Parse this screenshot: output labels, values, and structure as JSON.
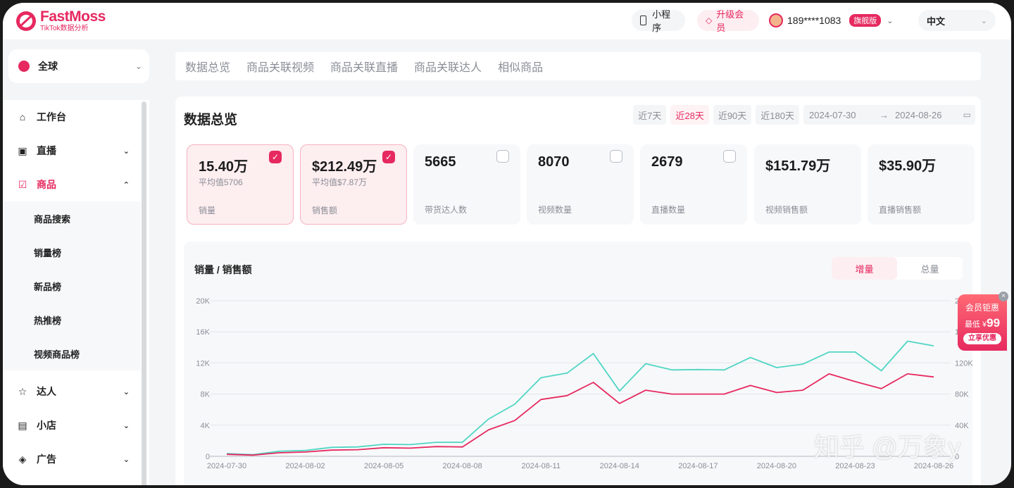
{
  "brand": {
    "name": "FastMoss",
    "tagline": "TikTok数据分析"
  },
  "topbar": {
    "mini_program": "小程序",
    "upgrade": "升级会员",
    "user_phone": "189****1083",
    "user_badge": "旗舰版",
    "language": "中文"
  },
  "region": {
    "label": "全球"
  },
  "sidebar": {
    "items": [
      {
        "label": "工作台",
        "icon": "home-icon"
      },
      {
        "label": "直播",
        "icon": "live-icon"
      },
      {
        "label": "商品",
        "icon": "product-icon"
      },
      {
        "label": "达人",
        "icon": "influencer-icon"
      },
      {
        "label": "小店",
        "icon": "shop-icon"
      },
      {
        "label": "广告",
        "icon": "ad-icon"
      }
    ],
    "sub_items": [
      "商品搜索",
      "销量榜",
      "新品榜",
      "热推榜",
      "视频商品榜"
    ]
  },
  "tabs": [
    "数据总览",
    "商品关联视频",
    "商品关联直播",
    "商品关联达人",
    "相似商品"
  ],
  "panel": {
    "title": "数据总览",
    "ranges": [
      "近7天",
      "近28天",
      "近90天",
      "近180天"
    ],
    "active_range": "近28天",
    "date_start": "2024-07-30",
    "date_end": "2024-08-26",
    "arrow": "→"
  },
  "metrics": [
    {
      "value": "15.40万",
      "avg": "平均值5706",
      "label": "销量",
      "selected": true
    },
    {
      "value": "$212.49万",
      "avg": "平均值$7.87万",
      "label": "销售额",
      "selected": true
    },
    {
      "value": "5665",
      "avg": "",
      "label": "带货达人数",
      "selected": false
    },
    {
      "value": "8070",
      "avg": "",
      "label": "视频数量",
      "selected": false
    },
    {
      "value": "2679",
      "avg": "",
      "label": "直播数量",
      "selected": false
    },
    {
      "value": "$151.79万",
      "avg": "",
      "label": "视频销售额",
      "selected": false
    },
    {
      "value": "$35.90万",
      "avg": "",
      "label": "直播销售额",
      "selected": false
    }
  ],
  "chart_section": {
    "title": "销量 / 销售额",
    "toggle_on": "增量",
    "toggle_off": "总量"
  },
  "chart_data": {
    "type": "line",
    "x": [
      "2024-07-30",
      "2024-07-31",
      "2024-08-01",
      "2024-08-02",
      "2024-08-03",
      "2024-08-04",
      "2024-08-05",
      "2024-08-06",
      "2024-08-07",
      "2024-08-08",
      "2024-08-09",
      "2024-08-10",
      "2024-08-11",
      "2024-08-12",
      "2024-08-13",
      "2024-08-14",
      "2024-08-15",
      "2024-08-16",
      "2024-08-17",
      "2024-08-18",
      "2024-08-19",
      "2024-08-20",
      "2024-08-21",
      "2024-08-22",
      "2024-08-23",
      "2024-08-24",
      "2024-08-25",
      "2024-08-26"
    ],
    "x_tick_labels": [
      "2024-07-30",
      "2024-08-02",
      "2024-08-05",
      "2024-08-08",
      "2024-08-11",
      "2024-08-14",
      "2024-08-17",
      "2024-08-20",
      "2024-08-23",
      "2024-08-26"
    ],
    "y_left": {
      "ticks": [
        "0",
        "4K",
        "8K",
        "12K",
        "16K",
        "20K"
      ],
      "lim": [
        0,
        20000
      ]
    },
    "y_right": {
      "ticks": [
        "0",
        "40K",
        "80K",
        "120K",
        "160K",
        "200K"
      ],
      "lim": [
        0,
        200000
      ]
    },
    "series": [
      {
        "axis": "right",
        "color": "#4fd6c4",
        "values": [
          3500,
          2200,
          6500,
          7500,
          11500,
          12000,
          15500,
          15000,
          18000,
          18000,
          48000,
          67000,
          101000,
          107000,
          132000,
          84000,
          119000,
          111000,
          111500,
          111000,
          127000,
          114000,
          118500,
          134000,
          134000,
          110000,
          148000,
          142000
        ]
      },
      {
        "axis": "left",
        "color": "#e6295f",
        "values": [
          250,
          150,
          450,
          550,
          800,
          850,
          1100,
          1050,
          1250,
          1200,
          3400,
          4600,
          7300,
          7800,
          9500,
          6800,
          8500,
          8000,
          8000,
          8000,
          9100,
          8200,
          8500,
          10600,
          9600,
          8700,
          10600,
          10200
        ]
      }
    ]
  },
  "promo": {
    "line1": "会员钜惠",
    "line2_prefix": "最低 ¥",
    "line2_price": "99",
    "cta": "立享优惠",
    "close": "×"
  },
  "watermark": "知乎 @万象y"
}
